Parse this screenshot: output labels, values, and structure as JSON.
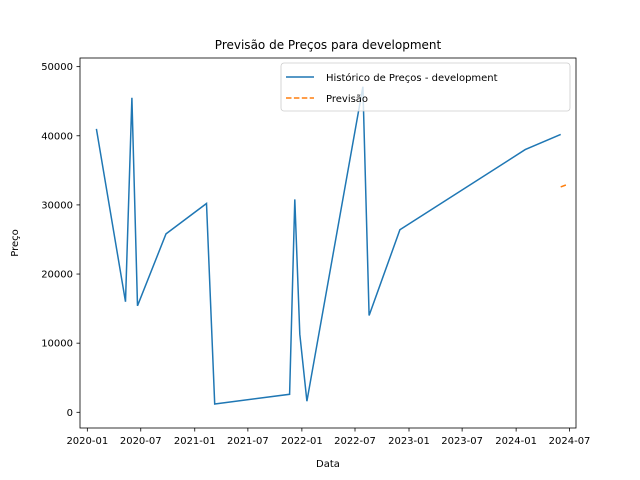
{
  "chart_data": {
    "type": "line",
    "title": "Previsão de Preços para development",
    "xlabel": "Data",
    "ylabel": "Preço",
    "xlim": [
      "2019-12-07",
      "2024-07-23"
    ],
    "ylim": [
      -2270,
      51250
    ],
    "x_ticks": [
      "2020-01",
      "2020-07",
      "2021-01",
      "2021-07",
      "2022-01",
      "2022-07",
      "2023-01",
      "2023-07",
      "2024-01",
      "2024-07"
    ],
    "y_ticks": [
      0,
      10000,
      20000,
      30000,
      40000,
      50000
    ],
    "grid": false,
    "legend_position": "top-right",
    "series": [
      {
        "name": "Histórico de Preços - development",
        "color": "#1f77b4",
        "style": "solid",
        "points": [
          [
            "2020-02-01",
            41000
          ],
          [
            "2020-05-10",
            16000
          ],
          [
            "2020-06-01",
            45500
          ],
          [
            "2020-06-20",
            15400
          ],
          [
            "2020-09-25",
            25800
          ],
          [
            "2021-02-10",
            30200
          ],
          [
            "2021-03-10",
            1200
          ],
          [
            "2021-11-20",
            2600
          ],
          [
            "2021-12-08",
            30800
          ],
          [
            "2021-12-25",
            11300
          ],
          [
            "2022-01-18",
            1600
          ],
          [
            "2022-07-28",
            47100
          ],
          [
            "2022-08-18",
            14000
          ],
          [
            "2022-12-01",
            26400
          ],
          [
            "2024-02-01",
            38000
          ],
          [
            "2024-06-01",
            40200
          ]
        ]
      },
      {
        "name": "Previsão",
        "color": "#ff7f0e",
        "style": "dashed",
        "points": [
          [
            "2024-06-01",
            32600
          ],
          [
            "2024-06-26",
            33000
          ]
        ]
      }
    ]
  }
}
